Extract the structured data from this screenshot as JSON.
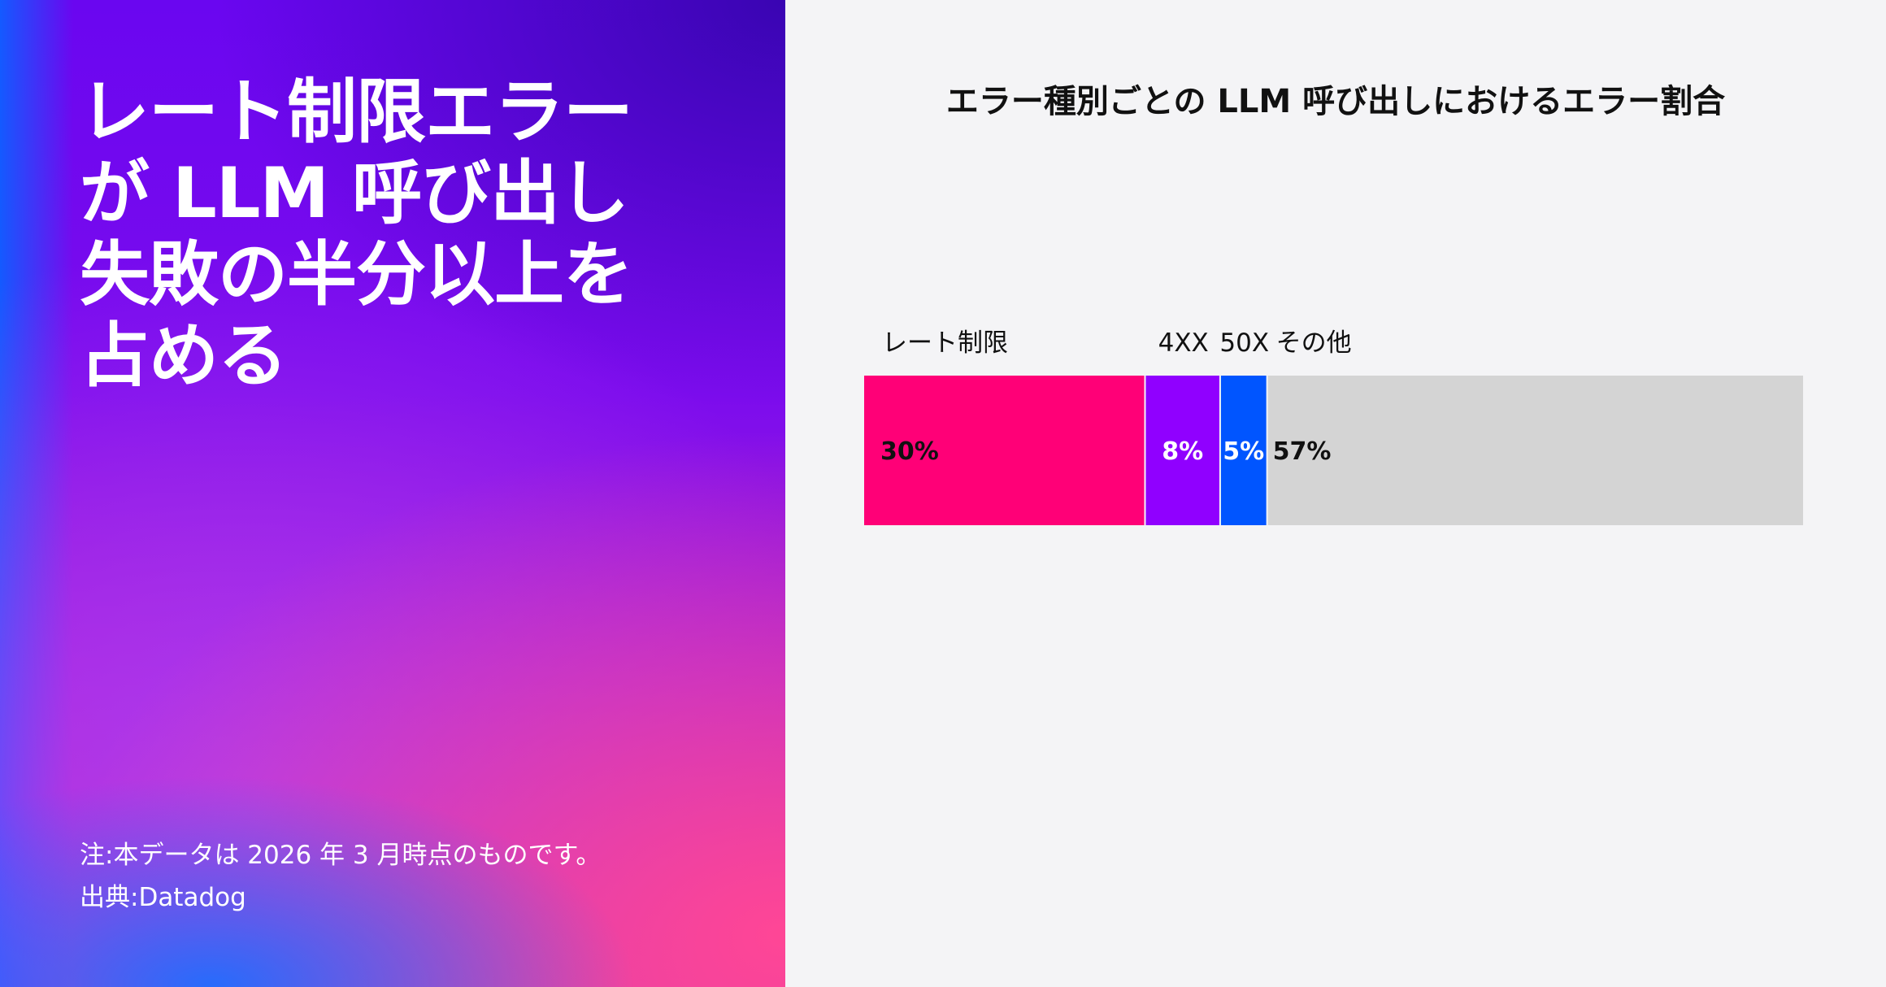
{
  "headline": {
    "lines": [
      "レート制限エラー",
      "が LLM 呼び出し",
      "失敗の半分以上を",
      "占める"
    ]
  },
  "footnotes": {
    "note": "注:本データは 2026 年 3 月時点のものです。",
    "source": "出典:Datadog"
  },
  "chart_data": {
    "type": "bar",
    "orientation": "horizontal-stacked",
    "title": "エラー種別ごとの LLM 呼び出しにおけるエラー割合",
    "categories": [
      "レート制限",
      "4XX",
      "50X",
      "その他"
    ],
    "values": [
      30,
      8,
      5,
      57
    ],
    "value_labels": [
      "30%",
      "8%",
      "5%",
      "57%"
    ],
    "unit": "%",
    "colors": [
      "#ff0077",
      "#9000ff",
      "#0055ff",
      "#d4d4d4"
    ],
    "value_label_colors": [
      "#111111",
      "#ffffff",
      "#ffffff",
      "#111111"
    ],
    "xlim": [
      0,
      100
    ],
    "grid": false,
    "legend": "labels above segments"
  }
}
